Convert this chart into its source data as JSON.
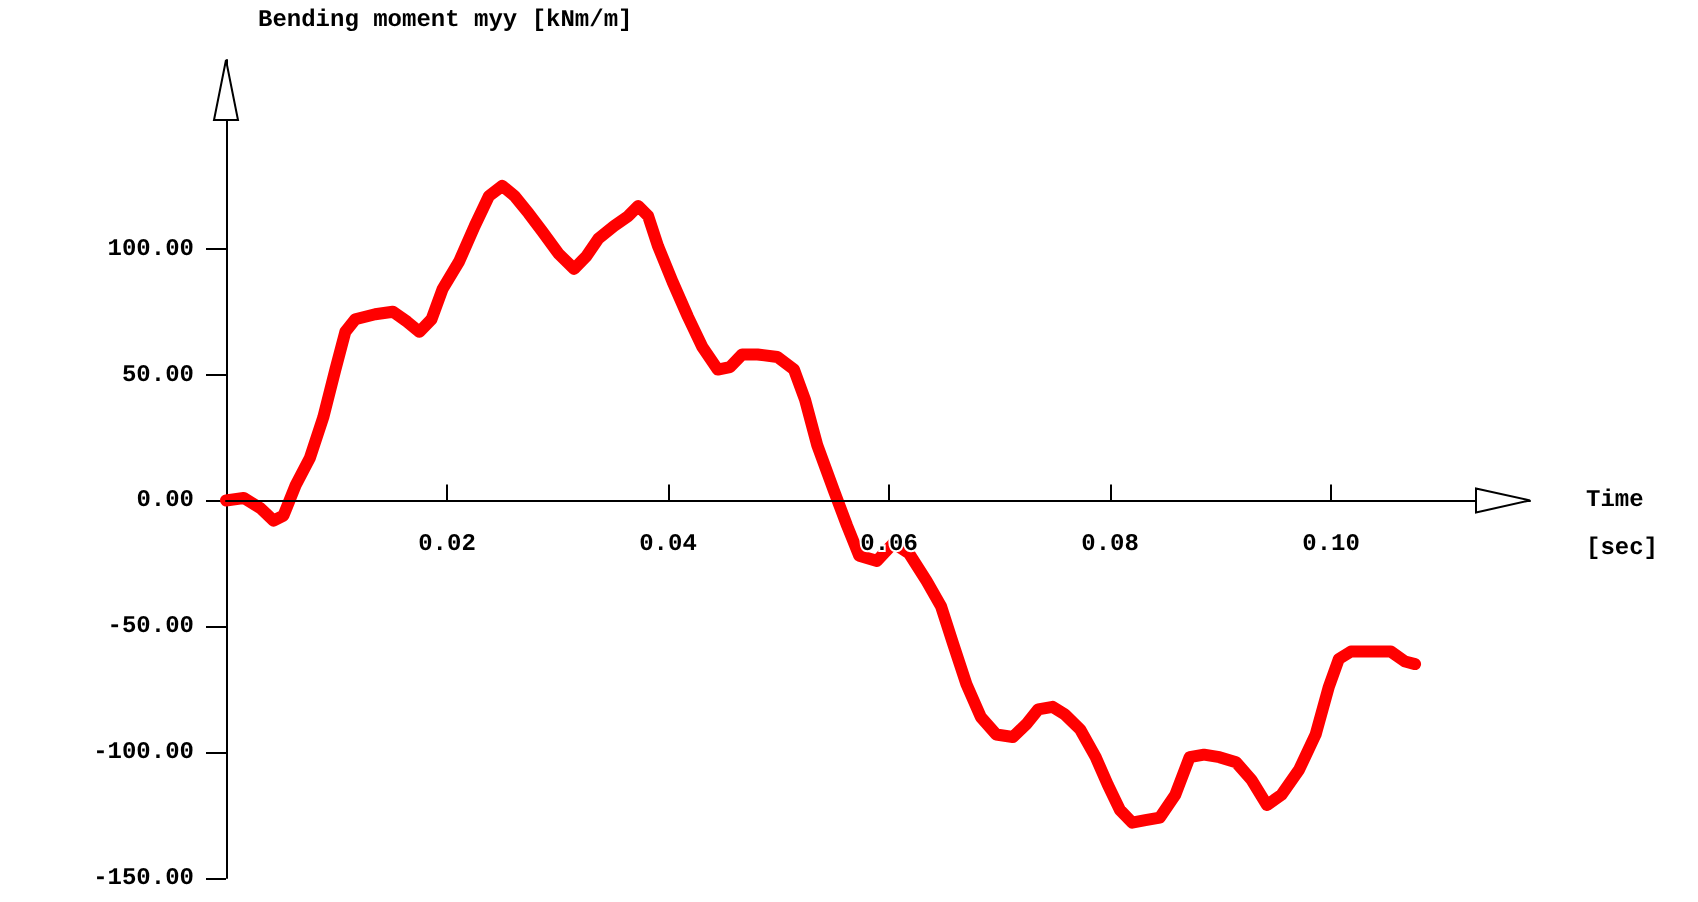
{
  "chart_data": {
    "type": "line",
    "ylabel": "Bending moment myy [kNm/m]",
    "xlabel": "Time [sec]",
    "xlim": [
      0,
      0.118
    ],
    "xticks": [
      0.02,
      0.04,
      0.06,
      0.08,
      {
        "value": 0.1,
        "label": "0.10"
      }
    ],
    "ylim": [
      -150,
      175
    ],
    "yticks": [
      {
        "value": -150,
        "label": "-150.00"
      },
      {
        "value": -100,
        "label": "-100.00"
      },
      {
        "value": -50,
        "label": "-50.00"
      },
      {
        "value": 0,
        "label": "0.00"
      },
      {
        "value": 50,
        "label": "50.00"
      },
      {
        "value": 100,
        "label": "100.00"
      }
    ],
    "grid": false,
    "marker": "none",
    "line_style": "solid",
    "series": [
      {
        "color": "#ff0000",
        "x": [
          0,
          0.0016,
          0.0031,
          0.0043,
          0.0052,
          0.0063,
          0.0076,
          0.0088,
          0.0099,
          0.0108,
          0.0117,
          0.0135,
          0.0151,
          0.0164,
          0.0175,
          0.0186,
          0.0196,
          0.0211,
          0.0225,
          0.0238,
          0.025,
          0.0261,
          0.0274,
          0.0286,
          0.0301,
          0.0315,
          0.0326,
          0.0337,
          0.0351,
          0.0364,
          0.0373,
          0.0382,
          0.0391,
          0.0404,
          0.0418,
          0.0431,
          0.0445,
          0.0456,
          0.0467,
          0.0481,
          0.0499,
          0.0514,
          0.0524,
          0.0535,
          0.055,
          0.0562,
          0.0573,
          0.0589,
          0.0604,
          0.0618,
          0.0634,
          0.0647,
          0.0658,
          0.067,
          0.0683,
          0.0697,
          0.0712,
          0.0724,
          0.0735,
          0.0748,
          0.0759,
          0.0773,
          0.0787,
          0.0798,
          0.0809,
          0.082,
          0.0832,
          0.0845,
          0.0859,
          0.0872,
          0.0885,
          0.0899,
          0.0914,
          0.0928,
          0.0942,
          0.0955,
          0.0971,
          0.0986,
          0.0998,
          0.1007,
          0.1018,
          0.104,
          0.1054,
          0.1067,
          0.1076
        ],
        "values": [
          0,
          1,
          -3,
          -8,
          -6,
          6,
          17,
          33,
          52,
          67,
          72,
          74,
          75,
          71,
          67,
          72,
          84,
          95,
          109,
          121,
          125,
          121,
          114,
          107,
          98,
          92,
          97,
          104,
          109,
          113,
          117,
          113,
          101,
          87,
          73,
          61,
          52,
          53,
          58,
          58,
          57,
          52,
          40,
          22,
          4,
          -10,
          -22,
          -24,
          -17,
          -21,
          -32,
          -42,
          -57,
          -73,
          -86,
          -93,
          -94,
          -89,
          -83,
          -82,
          -85,
          -91,
          -102,
          -113,
          -123,
          -128,
          -127,
          -126,
          -117,
          -102,
          -101,
          -102,
          -104,
          -111,
          -121,
          -117,
          -107,
          -93,
          -74,
          -63,
          -60,
          -60,
          -60,
          -64,
          -65
        ]
      }
    ]
  }
}
